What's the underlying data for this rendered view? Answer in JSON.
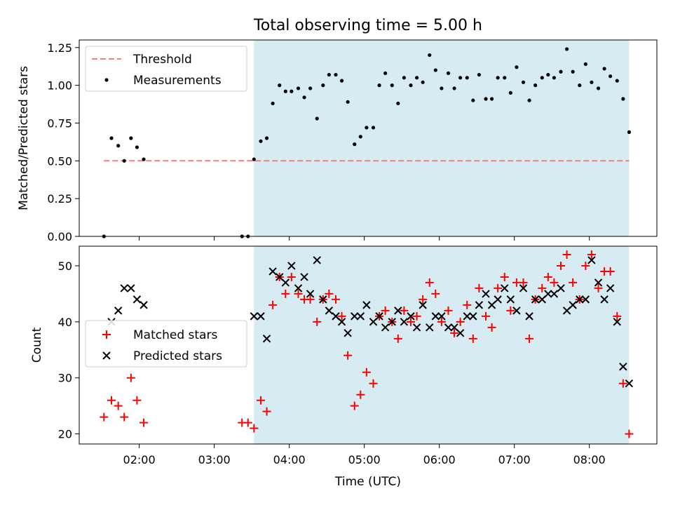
{
  "chart_data": {
    "title": "Total observing time = 5.00 h",
    "xlabel": "Time (UTC)",
    "x_unit": "hours UTC",
    "xlim": [
      1.2,
      8.9
    ],
    "xticks": [
      {
        "value": 2,
        "label": "02:00"
      },
      {
        "value": 3,
        "label": "03:00"
      },
      {
        "value": 4,
        "label": "04:00"
      },
      {
        "value": 5,
        "label": "05:00"
      },
      {
        "value": 6,
        "label": "06:00"
      },
      {
        "value": 7,
        "label": "07:00"
      },
      {
        "value": 8,
        "label": "08:00"
      }
    ],
    "observing_window": {
      "start": 3.53,
      "end": 8.53,
      "color": "#add8e6"
    },
    "panels": [
      {
        "type": "scatter",
        "ylabel": "Matched/Predicted stars",
        "ylim": [
          0,
          1.3
        ],
        "yticks": [
          "0.00",
          "0.25",
          "0.50",
          "0.75",
          "1.00",
          "1.25"
        ],
        "ytick_values": [
          0,
          0.25,
          0.5,
          0.75,
          1.0,
          1.25
        ],
        "legend_position": "upper-left",
        "threshold": {
          "name": "Threshold",
          "value": 0.5,
          "x_start": 1.53,
          "x_end": 8.53,
          "color": "#f08080"
        },
        "series": [
          {
            "name": "Measurements",
            "color": "#000000",
            "marker": "dot",
            "x": [
              1.53,
              1.63,
              1.72,
              1.8,
              1.89,
              1.97,
              2.06,
              3.37,
              3.45,
              3.53,
              3.62,
              3.7,
              3.78,
              3.87,
              3.95,
              4.03,
              4.12,
              4.2,
              4.28,
              4.37,
              4.45,
              4.53,
              4.62,
              4.7,
              4.78,
              4.87,
              4.95,
              5.03,
              5.12,
              5.2,
              5.28,
              5.37,
              5.45,
              5.53,
              5.62,
              5.7,
              5.78,
              5.87,
              5.95,
              6.03,
              6.12,
              6.2,
              6.28,
              6.37,
              6.45,
              6.53,
              6.62,
              6.7,
              6.78,
              6.87,
              6.95,
              7.03,
              7.12,
              7.2,
              7.28,
              7.37,
              7.45,
              7.53,
              7.62,
              7.7,
              7.78,
              7.87,
              7.95,
              8.03,
              8.12,
              8.2,
              8.28,
              8.37,
              8.45,
              8.53
            ],
            "y": [
              0.0,
              0.65,
              0.6,
              0.5,
              0.65,
              0.59,
              0.51,
              0.0,
              0.0,
              0.51,
              0.63,
              0.65,
              0.88,
              1.0,
              0.96,
              0.96,
              0.98,
              0.92,
              0.98,
              0.78,
              1.0,
              1.07,
              1.07,
              1.03,
              0.89,
              0.61,
              0.66,
              0.72,
              0.72,
              1.0,
              1.08,
              1.0,
              0.88,
              1.05,
              1.0,
              1.05,
              1.02,
              1.2,
              1.1,
              0.98,
              1.08,
              0.98,
              1.05,
              1.05,
              0.9,
              1.07,
              0.91,
              0.91,
              1.05,
              1.05,
              0.95,
              1.12,
              1.02,
              0.9,
              1.0,
              1.05,
              1.07,
              1.05,
              1.09,
              1.24,
              1.09,
              1.0,
              1.14,
              1.02,
              0.98,
              1.11,
              1.06,
              1.03,
              0.91,
              0.69
            ]
          }
        ]
      },
      {
        "type": "scatter",
        "ylabel": "Count",
        "ylim": [
          18.2,
          53.5
        ],
        "yticks": [
          "20",
          "30",
          "40",
          "50"
        ],
        "ytick_values": [
          20,
          30,
          40,
          50
        ],
        "legend_position": "center-left",
        "series": [
          {
            "name": "Matched stars",
            "color": "#ff0000",
            "marker": "plus",
            "x": [
              1.53,
              1.63,
              1.72,
              1.8,
              1.89,
              1.97,
              2.06,
              3.37,
              3.45,
              3.53,
              3.62,
              3.7,
              3.78,
              3.87,
              3.95,
              4.03,
              4.12,
              4.2,
              4.28,
              4.37,
              4.45,
              4.53,
              4.62,
              4.7,
              4.78,
              4.87,
              4.95,
              5.03,
              5.12,
              5.2,
              5.28,
              5.37,
              5.45,
              5.53,
              5.62,
              5.7,
              5.78,
              5.87,
              5.95,
              6.03,
              6.12,
              6.2,
              6.28,
              6.37,
              6.45,
              6.53,
              6.62,
              6.7,
              6.78,
              6.87,
              6.95,
              7.03,
              7.12,
              7.2,
              7.28,
              7.37,
              7.45,
              7.53,
              7.62,
              7.7,
              7.78,
              7.87,
              7.95,
              8.03,
              8.12,
              8.2,
              8.28,
              8.37,
              8.45,
              8.53
            ],
            "y": [
              23,
              26,
              25,
              23,
              30,
              26,
              22,
              22,
              22,
              21,
              26,
              24,
              43,
              48,
              45,
              48,
              45,
              44,
              44,
              40,
              44,
              45,
              44,
              41,
              34,
              25,
              27,
              31,
              29,
              41,
              42,
              40,
              37,
              42,
              40,
              41,
              44,
              47,
              45,
              40,
              42,
              38,
              40,
              43,
              37,
              46,
              41,
              39,
              46,
              48,
              42,
              47,
              47,
              37,
              44,
              46,
              48,
              47,
              50,
              52,
              47,
              44,
              50,
              52,
              46,
              49,
              49,
              41,
              29,
              20
            ]
          },
          {
            "name": "Predicted stars",
            "color": "#000000",
            "marker": "x",
            "x": [
              1.63,
              1.72,
              1.8,
              1.89,
              1.97,
              2.06,
              3.53,
              3.62,
              3.7,
              3.78,
              3.87,
              3.95,
              4.03,
              4.12,
              4.2,
              4.28,
              4.37,
              4.45,
              4.53,
              4.62,
              4.7,
              4.78,
              4.87,
              4.95,
              5.03,
              5.12,
              5.2,
              5.28,
              5.37,
              5.45,
              5.53,
              5.62,
              5.7,
              5.78,
              5.87,
              5.95,
              6.03,
              6.12,
              6.2,
              6.28,
              6.37,
              6.45,
              6.53,
              6.62,
              6.7,
              6.78,
              6.87,
              6.95,
              7.03,
              7.12,
              7.2,
              7.28,
              7.37,
              7.45,
              7.53,
              7.62,
              7.7,
              7.78,
              7.87,
              7.95,
              8.03,
              8.12,
              8.2,
              8.28,
              8.37,
              8.45,
              8.53
            ],
            "y": [
              40,
              42,
              46,
              46,
              44,
              43,
              41,
              41,
              37,
              49,
              48,
              47,
              50,
              46,
              48,
              45,
              51,
              44,
              42,
              41,
              40,
              38,
              41,
              41,
              43,
              40,
              41,
              39,
              40,
              42,
              40,
              41,
              39,
              43,
              39,
              41,
              41,
              39,
              39,
              38,
              41,
              41,
              43,
              45,
              43,
              44,
              46,
              44,
              42,
              46,
              41,
              44,
              44,
              45,
              45,
              46,
              42,
              43,
              44,
              44,
              51,
              47,
              44,
              46,
              40,
              32,
              29
            ]
          }
        ]
      }
    ]
  }
}
